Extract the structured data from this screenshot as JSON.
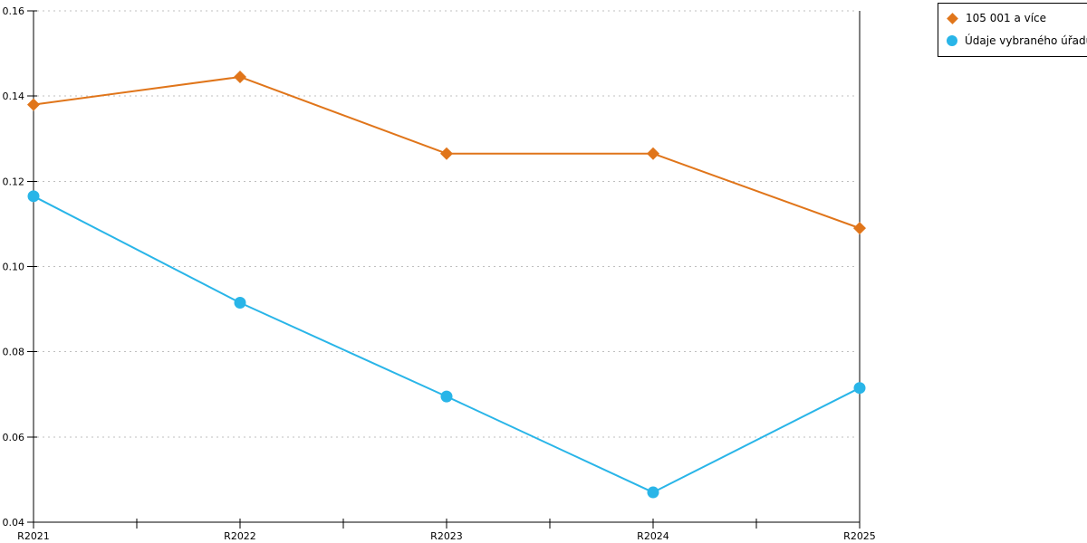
{
  "chart_data": {
    "type": "line",
    "title": "",
    "xlabel": "",
    "ylabel": "",
    "categories": [
      "R2021",
      "R2022",
      "R2023",
      "R2024",
      "R2025"
    ],
    "series": [
      {
        "name": "105 001 a více",
        "color": "#e0751a",
        "marker": "diamond",
        "values": [
          0.138,
          0.1445,
          0.1265,
          0.1265,
          0.109
        ]
      },
      {
        "name": "Údaje vybraného úřadu",
        "color": "#29b5e8",
        "marker": "circle",
        "values": [
          0.1165,
          0.0915,
          0.0695,
          0.047,
          0.0715
        ]
      }
    ],
    "ylim": [
      0.04,
      0.16
    ],
    "yticks": [
      0.04,
      0.06,
      0.08,
      0.1,
      0.12,
      0.14,
      0.16
    ],
    "ytick_labels": [
      "0.04",
      "0.06",
      "0.08",
      "0.10",
      "0.12",
      "0.14",
      "0.16"
    ],
    "grid": "dotted horizontal",
    "grid_color": "#bfbfbf",
    "axis_color": "#000000",
    "legend_position": "top-right"
  }
}
